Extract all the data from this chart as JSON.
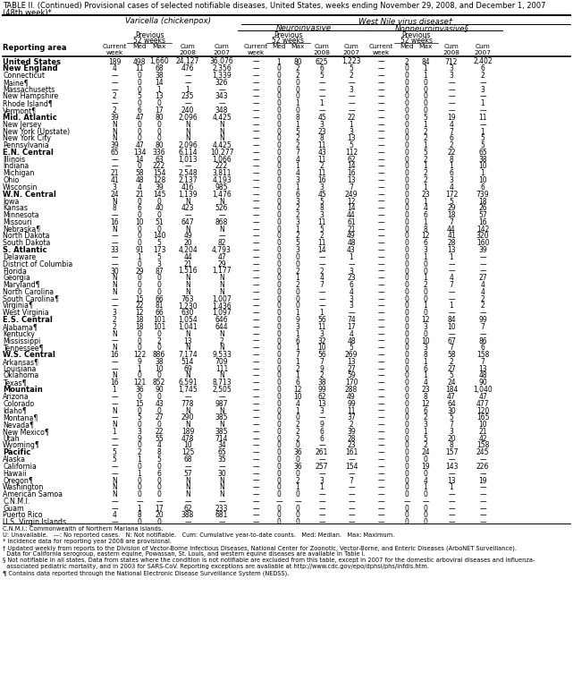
{
  "title_line1": "TABLE II. (Continued) Provisional cases of selected notifiable diseases, United States, weeks ending November 29, 2008, and December 1, 2007",
  "title_line2": "(48th week)*",
  "bold_rows": [
    "United States",
    "New England",
    "Mid. Atlantic",
    "E.N. Central",
    "W.N. Central",
    "S. Atlantic",
    "E.S. Central",
    "W.S. Central",
    "Mountain",
    "Pacific"
  ],
  "rows": [
    [
      "United States",
      "189",
      "498",
      "1,660",
      "24,127",
      "36,076",
      "—",
      "1",
      "80",
      "625",
      "1,223",
      "—",
      "2",
      "84",
      "712",
      "2,402"
    ],
    [
      "New England",
      "4",
      "11",
      "68",
      "476",
      "2,356",
      "—",
      "0",
      "2",
      "6",
      "5",
      "—",
      "0",
      "1",
      "3",
      "6"
    ],
    [
      "Connecticut",
      "—",
      "0",
      "38",
      "—",
      "1,339",
      "—",
      "0",
      "2",
      "5",
      "2",
      "—",
      "0",
      "1",
      "3",
      "2"
    ],
    [
      "Maine¶",
      "—",
      "0",
      "14",
      "—",
      "326",
      "—",
      "0",
      "0",
      "—",
      "—",
      "—",
      "0",
      "0",
      "—",
      "—"
    ],
    [
      "Massachusetts",
      "—",
      "0",
      "1",
      "1",
      "—",
      "—",
      "0",
      "0",
      "—",
      "3",
      "—",
      "0",
      "0",
      "—",
      "3"
    ],
    [
      "New Hampshire",
      "2",
      "5",
      "13",
      "235",
      "343",
      "—",
      "0",
      "0",
      "—",
      "—",
      "—",
      "0",
      "0",
      "—",
      "—"
    ],
    [
      "Rhode Island¶",
      "—",
      "0",
      "0",
      "—",
      "—",
      "—",
      "0",
      "1",
      "1",
      "—",
      "—",
      "0",
      "0",
      "—",
      "1"
    ],
    [
      "Vermont¶",
      "2",
      "6",
      "17",
      "240",
      "348",
      "—",
      "0",
      "0",
      "—",
      "—",
      "—",
      "0",
      "0",
      "—",
      "—"
    ],
    [
      "Mid. Atlantic",
      "39",
      "47",
      "80",
      "2,096",
      "4,425",
      "—",
      "0",
      "8",
      "45",
      "22",
      "—",
      "0",
      "5",
      "19",
      "11"
    ],
    [
      "New Jersey",
      "N",
      "0",
      "0",
      "N",
      "N",
      "—",
      "0",
      "1",
      "3",
      "1",
      "—",
      "0",
      "1",
      "4",
      "—"
    ],
    [
      "New York (Upstate)",
      "N",
      "0",
      "0",
      "N",
      "N",
      "—",
      "0",
      "5",
      "23",
      "3",
      "—",
      "0",
      "2",
      "7",
      "1"
    ],
    [
      "New York City",
      "N",
      "0",
      "0",
      "N",
      "N",
      "—",
      "0",
      "2",
      "8",
      "13",
      "—",
      "0",
      "2",
      "6",
      "5"
    ],
    [
      "Pennsylvania",
      "39",
      "47",
      "80",
      "2,096",
      "4,425",
      "—",
      "0",
      "2",
      "11",
      "5",
      "—",
      "0",
      "1",
      "2",
      "5"
    ],
    [
      "E.N. Central",
      "65",
      "134",
      "336",
      "6,114",
      "10,277",
      "—",
      "0",
      "7",
      "43",
      "112",
      "—",
      "0",
      "5",
      "22",
      "65"
    ],
    [
      "Illinois",
      "—",
      "14",
      "63",
      "1,013",
      "1,066",
      "—",
      "0",
      "4",
      "11",
      "62",
      "—",
      "0",
      "2",
      "8",
      "38"
    ],
    [
      "Indiana",
      "—",
      "0",
      "222",
      "—",
      "222",
      "—",
      "0",
      "1",
      "2",
      "14",
      "—",
      "0",
      "1",
      "1",
      "10"
    ],
    [
      "Michigan",
      "21",
      "58",
      "154",
      "2,548",
      "3,811",
      "—",
      "0",
      "4",
      "11",
      "16",
      "—",
      "0",
      "2",
      "6",
      "1"
    ],
    [
      "Ohio",
      "41",
      "48",
      "128",
      "2,137",
      "4,193",
      "—",
      "0",
      "3",
      "16",
      "13",
      "—",
      "0",
      "2",
      "3",
      "10"
    ],
    [
      "Wisconsin",
      "3",
      "4",
      "39",
      "416",
      "985",
      "—",
      "0",
      "1",
      "3",
      "7",
      "—",
      "0",
      "1",
      "4",
      "6"
    ],
    [
      "W.N. Central",
      "24",
      "21",
      "145",
      "1,139",
      "1,476",
      "—",
      "0",
      "6",
      "45",
      "249",
      "—",
      "0",
      "23",
      "172",
      "739"
    ],
    [
      "Iowa",
      "N",
      "0",
      "0",
      "N",
      "N",
      "—",
      "0",
      "3",
      "5",
      "12",
      "—",
      "0",
      "1",
      "5",
      "18"
    ],
    [
      "Kansas",
      "8",
      "6",
      "40",
      "423",
      "526",
      "—",
      "0",
      "2",
      "8",
      "14",
      "—",
      "0",
      "4",
      "29",
      "26"
    ],
    [
      "Minnesota",
      "—",
      "0",
      "0",
      "—",
      "—",
      "—",
      "0",
      "2",
      "3",
      "44",
      "—",
      "0",
      "6",
      "18",
      "57"
    ],
    [
      "Missouri",
      "16",
      "10",
      "51",
      "647",
      "868",
      "—",
      "0",
      "3",
      "11",
      "61",
      "—",
      "0",
      "1",
      "7",
      "16"
    ],
    [
      "Nebraska¶",
      "N",
      "0",
      "0",
      "N",
      "N",
      "—",
      "0",
      "1",
      "5",
      "21",
      "—",
      "0",
      "8",
      "44",
      "142"
    ],
    [
      "North Dakota",
      "—",
      "0",
      "140",
      "49",
      "—",
      "—",
      "0",
      "2",
      "2",
      "49",
      "—",
      "0",
      "12",
      "41",
      "320"
    ],
    [
      "South Dakota",
      "—",
      "0",
      "5",
      "20",
      "82",
      "—",
      "0",
      "5",
      "11",
      "48",
      "—",
      "0",
      "6",
      "28",
      "160"
    ],
    [
      "S. Atlantic",
      "33",
      "91",
      "173",
      "4,204",
      "4,793",
      "—",
      "0",
      "3",
      "14",
      "43",
      "—",
      "0",
      "3",
      "13",
      "39"
    ],
    [
      "Delaware",
      "—",
      "1",
      "5",
      "44",
      "47",
      "—",
      "0",
      "0",
      "—",
      "1",
      "—",
      "0",
      "1",
      "1",
      "—"
    ],
    [
      "District of Columbia",
      "—",
      "0",
      "3",
      "21",
      "29",
      "—",
      "0",
      "0",
      "—",
      "—",
      "—",
      "0",
      "0",
      "—",
      "—"
    ],
    [
      "Florida",
      "30",
      "29",
      "87",
      "1,516",
      "1,177",
      "—",
      "0",
      "2",
      "2",
      "3",
      "—",
      "0",
      "0",
      "—",
      "—"
    ],
    [
      "Georgia",
      "N",
      "0",
      "0",
      "N",
      "N",
      "—",
      "0",
      "1",
      "4",
      "23",
      "—",
      "0",
      "1",
      "4",
      "27"
    ],
    [
      "Maryland¶",
      "N",
      "0",
      "0",
      "N",
      "N",
      "—",
      "0",
      "2",
      "7",
      "6",
      "—",
      "0",
      "2",
      "7",
      "4"
    ],
    [
      "North Carolina",
      "N",
      "0",
      "0",
      "N",
      "N",
      "—",
      "0",
      "0",
      "—",
      "4",
      "—",
      "0",
      "0",
      "—",
      "4"
    ],
    [
      "South Carolina¶",
      "—",
      "15",
      "66",
      "763",
      "1,007",
      "—",
      "0",
      "0",
      "—",
      "3",
      "—",
      "0",
      "0",
      "—",
      "2"
    ],
    [
      "Virginia¶",
      "—",
      "22",
      "81",
      "1,230",
      "1,436",
      "—",
      "0",
      "0",
      "—",
      "3",
      "—",
      "0",
      "1",
      "1",
      "2"
    ],
    [
      "West Virginia",
      "3",
      "12",
      "66",
      "630",
      "1,097",
      "—",
      "0",
      "1",
      "1",
      "—",
      "—",
      "0",
      "0",
      "—",
      "—"
    ],
    [
      "E.S. Central",
      "2",
      "18",
      "101",
      "1,054",
      "646",
      "—",
      "0",
      "9",
      "56",
      "74",
      "—",
      "0",
      "12",
      "84",
      "99"
    ],
    [
      "Alabama¶",
      "2",
      "18",
      "101",
      "1,041",
      "644",
      "—",
      "0",
      "3",
      "11",
      "17",
      "—",
      "0",
      "3",
      "10",
      "7"
    ],
    [
      "Kentucky",
      "N",
      "0",
      "0",
      "N",
      "N",
      "—",
      "0",
      "1",
      "3",
      "4",
      "—",
      "0",
      "0",
      "—",
      "—"
    ],
    [
      "Mississippi",
      "—",
      "0",
      "2",
      "13",
      "2",
      "—",
      "0",
      "6",
      "32",
      "48",
      "—",
      "0",
      "10",
      "67",
      "86"
    ],
    [
      "Tennessee¶",
      "N",
      "0",
      "0",
      "N",
      "N",
      "—",
      "0",
      "1",
      "10",
      "5",
      "—",
      "0",
      "3",
      "7",
      "6"
    ],
    [
      "W.S. Central",
      "16",
      "122",
      "886",
      "7,174",
      "9,533",
      "—",
      "0",
      "7",
      "56",
      "269",
      "—",
      "0",
      "8",
      "58",
      "158"
    ],
    [
      "Arkansas¶",
      "—",
      "9",
      "38",
      "514",
      "709",
      "—",
      "0",
      "1",
      "7",
      "13",
      "—",
      "0",
      "1",
      "2",
      "7"
    ],
    [
      "Louisiana",
      "—",
      "1",
      "10",
      "69",
      "111",
      "—",
      "0",
      "2",
      "9",
      "27",
      "—",
      "0",
      "6",
      "27",
      "13"
    ],
    [
      "Oklahoma",
      "N",
      "0",
      "0",
      "N",
      "N",
      "—",
      "0",
      "1",
      "2",
      "59",
      "—",
      "0",
      "1",
      "5",
      "48"
    ],
    [
      "Texas¶",
      "16",
      "121",
      "852",
      "6,591",
      "8,713",
      "—",
      "0",
      "6",
      "38",
      "170",
      "—",
      "0",
      "4",
      "24",
      "90"
    ],
    [
      "Mountain",
      "1",
      "36",
      "90",
      "1,745",
      "2,505",
      "—",
      "0",
      "12",
      "99",
      "288",
      "—",
      "0",
      "23",
      "184",
      "1,040"
    ],
    [
      "Arizona",
      "—",
      "0",
      "0",
      "—",
      "—",
      "—",
      "0",
      "10",
      "62",
      "49",
      "—",
      "0",
      "8",
      "47",
      "47"
    ],
    [
      "Colorado",
      "—",
      "15",
      "43",
      "778",
      "987",
      "—",
      "0",
      "4",
      "13",
      "99",
      "—",
      "0",
      "12",
      "64",
      "477"
    ],
    [
      "Idaho¶",
      "N",
      "0",
      "0",
      "N",
      "N",
      "—",
      "0",
      "1",
      "3",
      "11",
      "—",
      "0",
      "6",
      "30",
      "120"
    ],
    [
      "Montana¶",
      "—",
      "5",
      "27",
      "290",
      "385",
      "—",
      "0",
      "0",
      "—",
      "37",
      "—",
      "0",
      "2",
      "5",
      "165"
    ],
    [
      "Nevada¶",
      "N",
      "0",
      "0",
      "N",
      "N",
      "—",
      "0",
      "2",
      "9",
      "2",
      "—",
      "0",
      "3",
      "7",
      "10"
    ],
    [
      "New Mexico¶",
      "1",
      "3",
      "22",
      "189",
      "385",
      "—",
      "0",
      "2",
      "6",
      "39",
      "—",
      "0",
      "1",
      "3",
      "21"
    ],
    [
      "Utah",
      "—",
      "9",
      "55",
      "478",
      "714",
      "—",
      "0",
      "2",
      "6",
      "28",
      "—",
      "0",
      "5",
      "20",
      "42"
    ],
    [
      "Wyoming¶",
      "—",
      "0",
      "4",
      "10",
      "34",
      "—",
      "0",
      "0",
      "—",
      "23",
      "—",
      "0",
      "2",
      "8",
      "158"
    ],
    [
      "Pacific",
      "5",
      "2",
      "8",
      "125",
      "65",
      "—",
      "0",
      "36",
      "261",
      "161",
      "—",
      "0",
      "24",
      "157",
      "245"
    ],
    [
      "Alaska",
      "5",
      "1",
      "5",
      "68",
      "35",
      "—",
      "0",
      "0",
      "—",
      "—",
      "—",
      "0",
      "0",
      "—",
      "—"
    ],
    [
      "California",
      "—",
      "0",
      "0",
      "—",
      "—",
      "—",
      "0",
      "36",
      "257",
      "154",
      "—",
      "0",
      "19",
      "143",
      "226"
    ],
    [
      "Hawaii",
      "—",
      "1",
      "6",
      "57",
      "30",
      "—",
      "0",
      "0",
      "—",
      "—",
      "—",
      "0",
      "0",
      "—",
      "—"
    ],
    [
      "Oregon¶",
      "N",
      "0",
      "0",
      "N",
      "N",
      "—",
      "0",
      "2",
      "3",
      "7",
      "—",
      "0",
      "4",
      "13",
      "19"
    ],
    [
      "Washington",
      "N",
      "0",
      "0",
      "N",
      "N",
      "—",
      "0",
      "1",
      "1",
      "—",
      "—",
      "0",
      "1",
      "1",
      "—"
    ],
    [
      "American Samoa",
      "N",
      "0",
      "0",
      "N",
      "N",
      "—",
      "0",
      "0",
      "—",
      "—",
      "—",
      "0",
      "0",
      "—",
      "—"
    ],
    [
      "C.N.M.I.",
      "—",
      "—",
      "—",
      "—",
      "—",
      "—",
      "—",
      "—",
      "—",
      "—",
      "—",
      "—",
      "—",
      "—",
      "—"
    ],
    [
      "Guam",
      "—",
      "1",
      "17",
      "62",
      "233",
      "—",
      "0",
      "0",
      "—",
      "—",
      "—",
      "0",
      "0",
      "—",
      "—"
    ],
    [
      "Puerto Rico",
      "4",
      "8",
      "20",
      "388",
      "681",
      "—",
      "0",
      "0",
      "—",
      "—",
      "—",
      "0",
      "0",
      "—",
      "—"
    ],
    [
      "U.S. Virgin Islands",
      "—",
      "0",
      "0",
      "—",
      "—",
      "—",
      "0",
      "0",
      "—",
      "—",
      "—",
      "0",
      "0",
      "—",
      "—"
    ]
  ],
  "footnotes": [
    "C.N.M.I.: Commonwealth of Northern Mariana Islands.",
    "U: Unavailable.   —: No reported cases.   N: Not notifiable.   Cum: Cumulative year-to-date counts.   Med: Median.   Max: Maximum.",
    "* Incidence data for reporting year 2008 are provisional.",
    "† Updated weekly from reports to the Division of Vector-Borne Infectious Diseases, National Center for Zoonotic, Vector-Borne, and Enteric Diseases (ArboNET Surveillance).",
    "  Data for California serogroup, eastern equine, Powassan, St. Louis, and western equine diseases are available in Table I.",
    "§ Not notifiable in all states. Data from states where the condition is not notifiable are excluded from this table, except in 2007 for the domestic arboviral diseases and influenza-",
    "  associated pediatric mortality, and in 2003 for SARS-CoV. Reporting exceptions are available at http://www.cdc.gov/epo/dphsi/phs/infdis.htm.",
    "¶ Contains data reported through the National Electronic Disease Surveillance System (NEDSS)."
  ]
}
